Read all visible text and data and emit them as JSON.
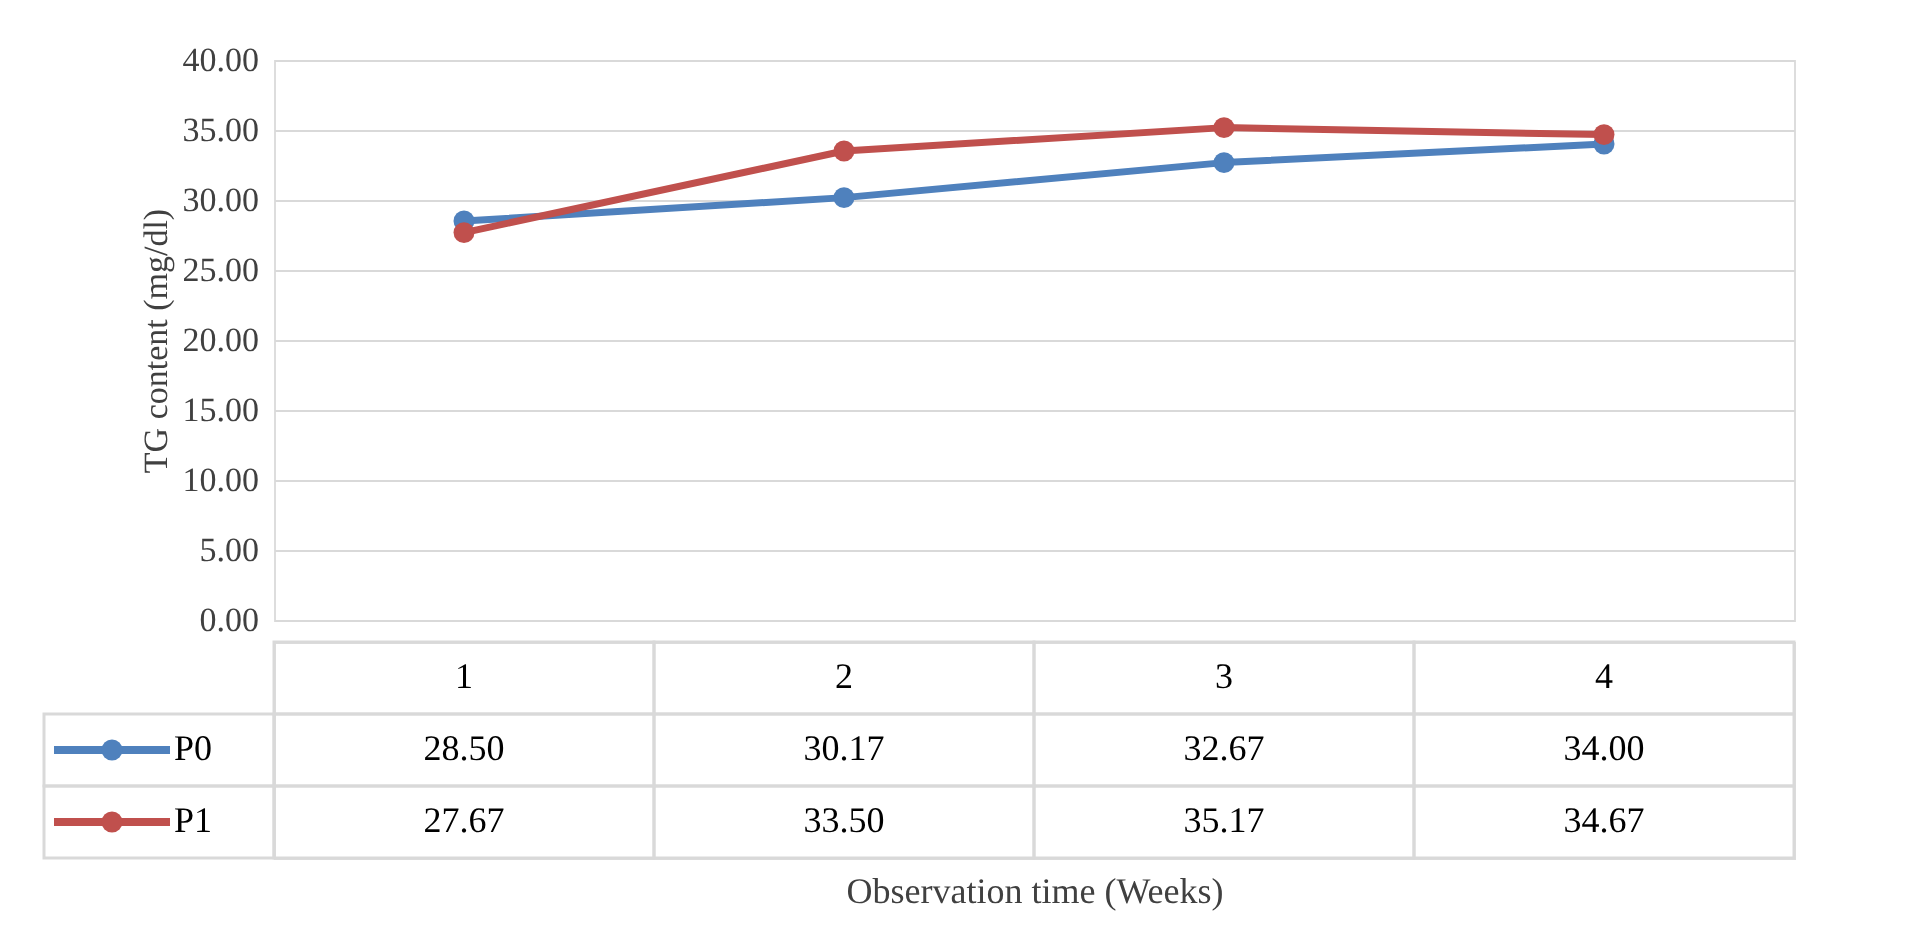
{
  "chart_data": {
    "type": "line",
    "xlabel": "Observation time (Weeks)",
    "ylabel": "TG content  (mg/dl)",
    "categories": [
      "1",
      "2",
      "3",
      "4"
    ],
    "series": [
      {
        "name": "P0",
        "color": "#4f81bd",
        "values": [
          28.5,
          30.17,
          32.67,
          34.0
        ],
        "value_labels": [
          "28.50",
          "30.17",
          "32.67",
          "34.00"
        ]
      },
      {
        "name": "P1",
        "color": "#c0504d",
        "values": [
          27.67,
          33.5,
          35.17,
          34.67
        ],
        "value_labels": [
          "27.67",
          "33.50",
          "35.17",
          "34.67"
        ]
      }
    ],
    "ylim": [
      0,
      40
    ],
    "yticks": [
      {
        "value": 0,
        "label": "0.00"
      },
      {
        "value": 5,
        "label": "5.00"
      },
      {
        "value": 10,
        "label": "10.00"
      },
      {
        "value": 15,
        "label": "15.00"
      },
      {
        "value": 20,
        "label": "20.00"
      },
      {
        "value": 25,
        "label": "25.00"
      },
      {
        "value": 30,
        "label": "30.00"
      },
      {
        "value": 35,
        "label": "35.00"
      },
      {
        "value": 40,
        "label": "40.00"
      }
    ],
    "grid": "y",
    "marker": "circle",
    "line_style": "solid",
    "legend": "bottom left"
  }
}
